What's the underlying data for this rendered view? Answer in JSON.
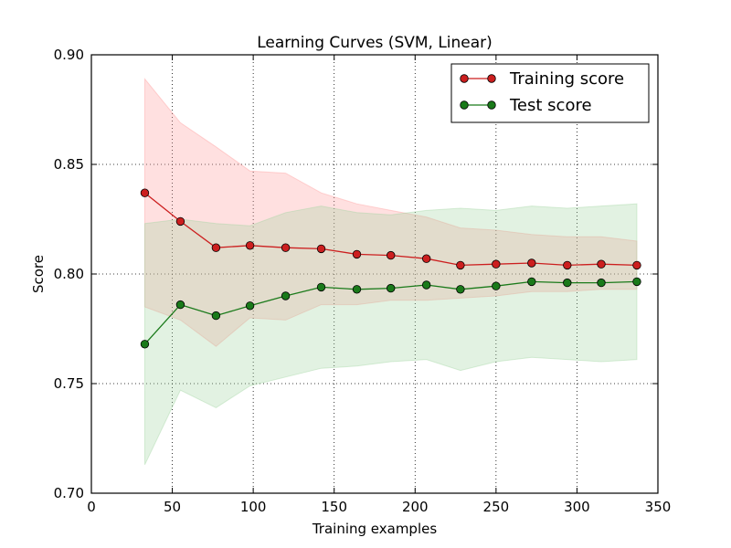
{
  "chart_data": {
    "type": "line",
    "title": "Learning Curves (SVM, Linear)",
    "xlabel": "Training examples",
    "ylabel": "Score",
    "xlim": [
      0,
      350
    ],
    "ylim": [
      0.7,
      0.9
    ],
    "xticks": [
      0,
      50,
      100,
      150,
      200,
      250,
      300,
      350
    ],
    "yticks": [
      0.7,
      0.75,
      0.8,
      0.85,
      0.9
    ],
    "xtick_labels": [
      "0",
      "50",
      "100",
      "150",
      "200",
      "250",
      "300",
      "350"
    ],
    "ytick_labels": [
      "0.70",
      "0.75",
      "0.80",
      "0.85",
      "0.90"
    ],
    "grid": true,
    "legend_position": "top-right",
    "x": [
      33,
      55,
      77,
      98,
      120,
      142,
      164,
      185,
      207,
      228,
      250,
      272,
      294,
      315,
      337
    ],
    "series": [
      {
        "name": "Training score",
        "color": "#cc1f1f",
        "band_color": "#ff9999",
        "values": [
          0.837,
          0.824,
          0.812,
          0.813,
          0.812,
          0.8115,
          0.809,
          0.8085,
          0.807,
          0.804,
          0.8045,
          0.805,
          0.804,
          0.8045,
          0.804
        ],
        "lower": [
          0.785,
          0.779,
          0.767,
          0.78,
          0.779,
          0.786,
          0.786,
          0.788,
          0.788,
          0.789,
          0.79,
          0.792,
          0.792,
          0.793,
          0.793
        ],
        "upper": [
          0.889,
          0.869,
          0.858,
          0.847,
          0.846,
          0.837,
          0.832,
          0.829,
          0.826,
          0.821,
          0.82,
          0.818,
          0.817,
          0.817,
          0.815
        ]
      },
      {
        "name": "Test score",
        "color": "#1a7a1a",
        "band_color": "#9fd49f",
        "values": [
          0.768,
          0.786,
          0.781,
          0.7855,
          0.79,
          0.794,
          0.793,
          0.7935,
          0.795,
          0.793,
          0.7945,
          0.7965,
          0.796,
          0.796,
          0.7965
        ],
        "lower": [
          0.713,
          0.747,
          0.739,
          0.749,
          0.753,
          0.757,
          0.758,
          0.76,
          0.761,
          0.756,
          0.76,
          0.762,
          0.761,
          0.76,
          0.761
        ],
        "upper": [
          0.823,
          0.825,
          0.823,
          0.822,
          0.828,
          0.831,
          0.828,
          0.827,
          0.829,
          0.83,
          0.829,
          0.831,
          0.83,
          0.831,
          0.832
        ]
      }
    ]
  }
}
